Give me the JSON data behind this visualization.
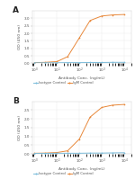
{
  "panel_A": {
    "label": "A",
    "orange_x": [
      1,
      3,
      10,
      30,
      100,
      300,
      1000,
      3000,
      10000
    ],
    "orange_y": [
      0.05,
      0.07,
      0.12,
      0.45,
      1.7,
      2.85,
      3.15,
      3.22,
      3.25
    ],
    "blue_x": [
      1,
      3,
      10,
      30,
      100,
      300,
      1000,
      3000,
      10000
    ],
    "blue_y": [
      0.04,
      0.04,
      0.04,
      0.05,
      0.05,
      0.06,
      0.06,
      0.07,
      0.07
    ],
    "ylim": [
      0.0,
      3.5
    ],
    "yticks": [
      0.0,
      0.5,
      1.0,
      1.5,
      2.0,
      2.5,
      3.0
    ],
    "ylabel": "OD (450 nm)",
    "xlabel": "Antibody Conc. (ng/mL)"
  },
  "panel_B": {
    "label": "B",
    "orange_x": [
      1,
      3,
      10,
      30,
      100,
      300,
      1000,
      3000,
      10000
    ],
    "orange_y": [
      0.04,
      0.05,
      0.08,
      0.18,
      0.85,
      2.1,
      2.65,
      2.78,
      2.82
    ],
    "blue_x": [
      1,
      3,
      10,
      30,
      100,
      300,
      1000,
      3000,
      10000
    ],
    "blue_y": [
      0.03,
      0.03,
      0.04,
      0.04,
      0.04,
      0.05,
      0.05,
      0.06,
      0.07
    ],
    "ylim": [
      0.0,
      3.0
    ],
    "yticks": [
      0.0,
      0.5,
      1.0,
      1.5,
      2.0,
      2.5
    ],
    "ylabel": "OD (450 nm)",
    "xlabel": "Antibody Conc. (ng/mL)"
  },
  "legend_labels": [
    "Isotype Control",
    "IgM Control"
  ],
  "orange_color": "#E8883A",
  "blue_color": "#7BBCDA",
  "background_color": "#ffffff",
  "grid_color": "#e8e8e8",
  "marker": "o",
  "marker_size": 1.2,
  "line_width": 0.7,
  "tick_fontsize": 3.0,
  "label_fontsize": 3.2,
  "legend_fontsize": 2.8,
  "panel_label_fontsize": 6.5
}
